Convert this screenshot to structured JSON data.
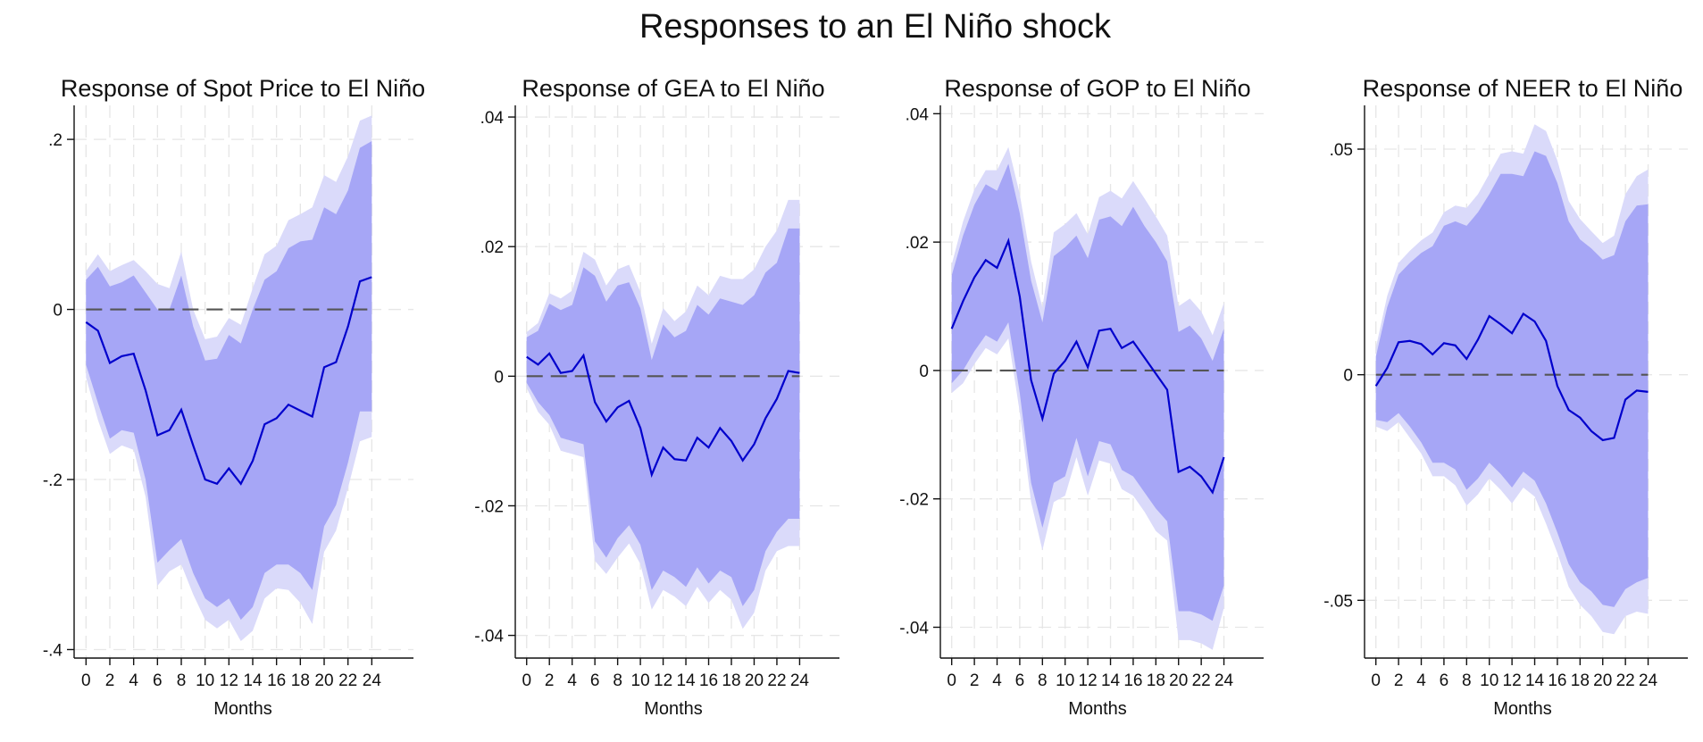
{
  "figure": {
    "title": "Responses to an El Niño shock"
  },
  "chart_data": [
    {
      "type": "line",
      "title": "Response of Spot Price to El Niño",
      "xlabel": "Months",
      "ylabel": "",
      "x": [
        0,
        1,
        2,
        3,
        4,
        5,
        6,
        7,
        8,
        9,
        10,
        11,
        12,
        13,
        14,
        15,
        16,
        17,
        18,
        19,
        20,
        21,
        22,
        23,
        24
      ],
      "xticks": [
        0,
        2,
        4,
        6,
        8,
        10,
        12,
        14,
        16,
        18,
        20,
        22,
        24
      ],
      "xticklabels": [
        "0",
        "2",
        "4",
        "6",
        "8",
        "10",
        "12",
        "14",
        "16",
        "18",
        "20",
        "22",
        "24"
      ],
      "xlim": [
        -1,
        27.5
      ],
      "ylim": [
        -0.41,
        0.24
      ],
      "yticks": [
        -0.4,
        -0.2,
        0,
        0.2
      ],
      "yticklabels": [
        "-.4",
        "-.2",
        "0",
        ".2"
      ],
      "grid": true,
      "series": [
        {
          "role": "irf",
          "values": [
            -0.015,
            -0.025,
            -0.063,
            -0.055,
            -0.052,
            -0.095,
            -0.148,
            -0.142,
            -0.118,
            -0.16,
            -0.2,
            -0.205,
            -0.187,
            -0.205,
            -0.178,
            -0.135,
            -0.128,
            -0.112,
            -0.119,
            -0.126,
            -0.068,
            -0.062,
            -0.02,
            0.033,
            0.038
          ]
        },
        {
          "role": "ci68_lower",
          "values": [
            -0.065,
            -0.11,
            -0.152,
            -0.142,
            -0.145,
            -0.2,
            -0.298,
            -0.283,
            -0.27,
            -0.31,
            -0.34,
            -0.35,
            -0.34,
            -0.365,
            -0.35,
            -0.31,
            -0.3,
            -0.3,
            -0.31,
            -0.33,
            -0.255,
            -0.23,
            -0.18,
            -0.12,
            -0.12
          ]
        },
        {
          "role": "ci68_upper",
          "values": [
            0.035,
            0.05,
            0.027,
            0.032,
            0.04,
            0.02,
            0.0,
            0.0,
            0.04,
            -0.02,
            -0.06,
            -0.058,
            -0.03,
            -0.04,
            0.0,
            0.035,
            0.045,
            0.072,
            0.08,
            0.082,
            0.12,
            0.112,
            0.14,
            0.19,
            0.198
          ]
        },
        {
          "role": "ci90_lower",
          "values": [
            -0.08,
            -0.13,
            -0.17,
            -0.16,
            -0.165,
            -0.22,
            -0.325,
            -0.308,
            -0.3,
            -0.335,
            -0.365,
            -0.375,
            -0.365,
            -0.39,
            -0.378,
            -0.34,
            -0.328,
            -0.33,
            -0.345,
            -0.37,
            -0.285,
            -0.26,
            -0.21,
            -0.155,
            -0.15
          ]
        },
        {
          "role": "ci90_upper",
          "values": [
            0.045,
            0.065,
            0.045,
            0.052,
            0.058,
            0.045,
            0.03,
            0.025,
            0.068,
            0.0,
            -0.035,
            -0.032,
            -0.01,
            -0.018,
            0.025,
            0.065,
            0.075,
            0.105,
            0.112,
            0.12,
            0.158,
            0.15,
            0.18,
            0.222,
            0.228
          ]
        }
      ]
    },
    {
      "type": "line",
      "title": "Response of GEA to El Niño",
      "xlabel": "Months",
      "ylabel": "",
      "x": [
        0,
        1,
        2,
        3,
        4,
        5,
        6,
        7,
        8,
        9,
        10,
        11,
        12,
        13,
        14,
        15,
        16,
        17,
        18,
        19,
        20,
        21,
        22,
        23,
        24
      ],
      "xticks": [
        0,
        2,
        4,
        6,
        8,
        10,
        12,
        14,
        16,
        18,
        20,
        22,
        24
      ],
      "xticklabels": [
        "0",
        "2",
        "4",
        "6",
        "8",
        "10",
        "12",
        "14",
        "16",
        "18",
        "20",
        "22",
        "24"
      ],
      "xlim": [
        -1,
        27.5
      ],
      "ylim": [
        -0.0435,
        0.0418
      ],
      "yticks": [
        -0.04,
        -0.02,
        0,
        0.02,
        0.04
      ],
      "yticklabels": [
        "-.04",
        "-.02",
        "0",
        ".02",
        ".04"
      ],
      "grid": true,
      "series": [
        {
          "role": "irf",
          "values": [
            0.003,
            0.0018,
            0.0035,
            0.0005,
            0.0008,
            0.0032,
            -0.004,
            -0.007,
            -0.0048,
            -0.0038,
            -0.008,
            -0.0152,
            -0.011,
            -0.0128,
            -0.013,
            -0.0095,
            -0.011,
            -0.008,
            -0.01,
            -0.013,
            -0.0105,
            -0.0065,
            -0.0035,
            0.0008,
            0.0005
          ]
        },
        {
          "role": "ci68_lower",
          "values": [
            -0.001,
            -0.004,
            -0.006,
            -0.0095,
            -0.01,
            -0.0105,
            -0.0255,
            -0.028,
            -0.025,
            -0.023,
            -0.026,
            -0.033,
            -0.03,
            -0.031,
            -0.0325,
            -0.0295,
            -0.032,
            -0.03,
            -0.031,
            -0.0355,
            -0.033,
            -0.027,
            -0.024,
            -0.022,
            -0.022
          ]
        },
        {
          "role": "ci68_upper",
          "values": [
            0.006,
            0.007,
            0.0112,
            0.0102,
            0.011,
            0.0168,
            0.0155,
            0.0115,
            0.014,
            0.0145,
            0.0105,
            0.0025,
            0.008,
            0.006,
            0.007,
            0.011,
            0.0095,
            0.012,
            0.0115,
            0.011,
            0.0125,
            0.016,
            0.0175,
            0.0228,
            0.0228
          ]
        },
        {
          "role": "ci90_lower",
          "values": [
            -0.0018,
            -0.0055,
            -0.0075,
            -0.0115,
            -0.012,
            -0.0125,
            -0.0285,
            -0.0305,
            -0.028,
            -0.0258,
            -0.029,
            -0.036,
            -0.033,
            -0.034,
            -0.0355,
            -0.0325,
            -0.035,
            -0.033,
            -0.0345,
            -0.039,
            -0.0365,
            -0.03,
            -0.027,
            -0.0262,
            -0.0262
          ]
        },
        {
          "role": "ci90_upper",
          "values": [
            0.0068,
            0.0082,
            0.0128,
            0.012,
            0.0132,
            0.0192,
            0.018,
            0.014,
            0.0165,
            0.0172,
            0.013,
            0.005,
            0.0105,
            0.0085,
            0.01,
            0.014,
            0.0125,
            0.0155,
            0.015,
            0.015,
            0.0165,
            0.02,
            0.0225,
            0.0272,
            0.0272
          ]
        }
      ]
    },
    {
      "type": "line",
      "title": "Response of GOP to El Niño",
      "xlabel": "Months",
      "ylabel": "",
      "x": [
        0,
        1,
        2,
        3,
        4,
        5,
        6,
        7,
        8,
        9,
        10,
        11,
        12,
        13,
        14,
        15,
        16,
        17,
        18,
        19,
        20,
        21,
        22,
        23,
        24
      ],
      "xticks": [
        0,
        2,
        4,
        6,
        8,
        10,
        12,
        14,
        16,
        18,
        20,
        22,
        24
      ],
      "xticklabels": [
        "0",
        "2",
        "4",
        "6",
        "8",
        "10",
        "12",
        "14",
        "16",
        "18",
        "20",
        "22",
        "24"
      ],
      "xlim": [
        -1,
        27.5
      ],
      "ylim": [
        -0.0448,
        0.0413
      ],
      "yticks": [
        -0.04,
        -0.02,
        0,
        0.02,
        0.04
      ],
      "yticklabels": [
        "-.04",
        "-.02",
        "0",
        ".02",
        ".04"
      ],
      "grid": true,
      "series": [
        {
          "role": "irf",
          "values": [
            0.0065,
            0.0108,
            0.0145,
            0.0172,
            0.016,
            0.0202,
            0.0115,
            -0.0015,
            -0.0075,
            -0.0005,
            0.0015,
            0.0045,
            0.0005,
            0.0062,
            0.0065,
            0.0035,
            0.0045,
            0.002,
            -0.0005,
            -0.003,
            -0.0158,
            -0.015,
            -0.0165,
            -0.019,
            -0.0135
          ]
        },
        {
          "role": "ci68_lower",
          "values": [
            -0.002,
            0.0,
            0.003,
            0.0055,
            0.0045,
            0.0075,
            -0.0035,
            -0.0175,
            -0.0245,
            -0.0175,
            -0.0165,
            -0.0105,
            -0.0165,
            -0.011,
            -0.0115,
            -0.0155,
            -0.0165,
            -0.019,
            -0.0215,
            -0.0235,
            -0.0375,
            -0.0375,
            -0.038,
            -0.039,
            -0.0335
          ]
        },
        {
          "role": "ci68_upper",
          "values": [
            0.0148,
            0.021,
            0.0258,
            0.029,
            0.028,
            0.0322,
            0.0245,
            0.014,
            0.0075,
            0.0178,
            0.0192,
            0.021,
            0.0175,
            0.0235,
            0.024,
            0.0225,
            0.0255,
            0.0225,
            0.02,
            0.017,
            0.006,
            0.007,
            0.005,
            0.0015,
            0.0065
          ]
        },
        {
          "role": "ci90_lower",
          "values": [
            -0.0035,
            -0.002,
            0.001,
            0.0035,
            0.0025,
            0.005,
            -0.0065,
            -0.0205,
            -0.028,
            -0.0205,
            -0.0195,
            -0.0135,
            -0.0195,
            -0.014,
            -0.0145,
            -0.0185,
            -0.0195,
            -0.022,
            -0.025,
            -0.0265,
            -0.042,
            -0.042,
            -0.0425,
            -0.0435,
            -0.037
          ]
        },
        {
          "role": "ci90_upper",
          "values": [
            0.0165,
            0.0232,
            0.0282,
            0.0312,
            0.0312,
            0.0348,
            0.0275,
            0.017,
            0.0098,
            0.0215,
            0.0228,
            0.0245,
            0.0212,
            0.027,
            0.028,
            0.0268,
            0.0295,
            0.0268,
            0.024,
            0.021,
            0.01,
            0.0112,
            0.0092,
            0.0055,
            0.0105
          ]
        }
      ]
    },
    {
      "type": "line",
      "title": "Response of NEER to El Niño",
      "xlabel": "Months",
      "ylabel": "",
      "x": [
        0,
        1,
        2,
        3,
        4,
        5,
        6,
        7,
        8,
        9,
        10,
        11,
        12,
        13,
        14,
        15,
        16,
        17,
        18,
        19,
        20,
        21,
        22,
        23,
        24
      ],
      "xticks": [
        0,
        2,
        4,
        6,
        8,
        10,
        12,
        14,
        16,
        18,
        20,
        22,
        24
      ],
      "xticklabels": [
        "0",
        "2",
        "4",
        "6",
        "8",
        "10",
        "12",
        "14",
        "16",
        "18",
        "20",
        "22",
        "24"
      ],
      "xlim": [
        -1,
        27.5
      ],
      "ylim": [
        -0.0628,
        0.0597
      ],
      "yticks": [
        -0.05,
        0,
        0.05
      ],
      "yticklabels": [
        "-.05",
        "0",
        ".05"
      ],
      "grid": true,
      "series": [
        {
          "role": "irf",
          "values": [
            -0.0025,
            0.0015,
            0.0072,
            0.0075,
            0.0068,
            0.0045,
            0.007,
            0.0065,
            0.0035,
            0.0078,
            0.013,
            0.0112,
            0.0092,
            0.0135,
            0.0118,
            0.0075,
            -0.0025,
            -0.0078,
            -0.0095,
            -0.0125,
            -0.0145,
            -0.014,
            -0.0055,
            -0.0035,
            -0.0038
          ]
        },
        {
          "role": "ci68_lower",
          "values": [
            -0.01,
            -0.0105,
            -0.0085,
            -0.0115,
            -0.015,
            -0.0195,
            -0.0195,
            -0.021,
            -0.0255,
            -0.023,
            -0.0195,
            -0.022,
            -0.025,
            -0.0215,
            -0.0235,
            -0.0285,
            -0.035,
            -0.042,
            -0.046,
            -0.048,
            -0.051,
            -0.0515,
            -0.0475,
            -0.046,
            -0.045
          ]
        },
        {
          "role": "ci68_upper",
          "values": [
            0.004,
            0.015,
            0.0222,
            0.0248,
            0.027,
            0.0285,
            0.033,
            0.034,
            0.033,
            0.036,
            0.04,
            0.0445,
            0.0445,
            0.044,
            0.0495,
            0.0485,
            0.0425,
            0.034,
            0.03,
            0.028,
            0.0255,
            0.0265,
            0.034,
            0.0375,
            0.0378
          ]
        },
        {
          "role": "ci90_lower",
          "values": [
            -0.0115,
            -0.0125,
            -0.0105,
            -0.014,
            -0.0175,
            -0.0225,
            -0.0225,
            -0.0245,
            -0.029,
            -0.0265,
            -0.023,
            -0.0255,
            -0.0285,
            -0.025,
            -0.027,
            -0.033,
            -0.0395,
            -0.047,
            -0.051,
            -0.0535,
            -0.057,
            -0.0575,
            -0.0535,
            -0.0525,
            -0.053
          ]
        },
        {
          "role": "ci90_upper",
          "values": [
            0.006,
            0.0175,
            0.0248,
            0.0275,
            0.0298,
            0.0315,
            0.036,
            0.0375,
            0.037,
            0.04,
            0.0445,
            0.049,
            0.0495,
            0.049,
            0.0555,
            0.054,
            0.0475,
            0.0385,
            0.0345,
            0.0318,
            0.0292,
            0.0308,
            0.04,
            0.044,
            0.0455
          ]
        }
      ]
    }
  ]
}
